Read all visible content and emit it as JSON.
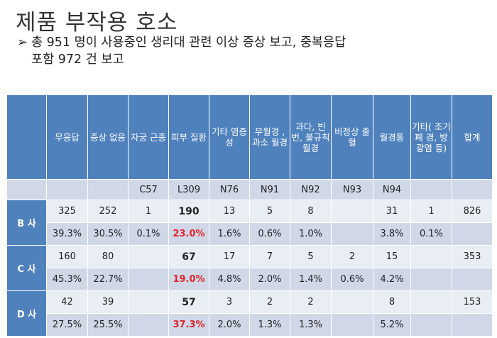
{
  "title": "제품 부작용 호소",
  "bullet": {
    "arrow": "➢",
    "line1": "총 951 명이 사용중인 생리대 관련 이상 증상 보고, 중복응답",
    "line2": "포함 972 건 보고"
  },
  "table": {
    "headers": [
      "무응답",
      "증상 없음",
      "자궁 근종",
      "피부 질환",
      "기타 염증성",
      "무월경 , 과소 월경",
      "과다, 빈번, 불규칙 월경",
      "비정상 출혈",
      "월경통",
      "기타( 조기폐 경, 방광염 등)",
      "합계"
    ],
    "codes": [
      "",
      "",
      "C57",
      "L309",
      "N76",
      "N91",
      "N92",
      "N93",
      "N94",
      "",
      ""
    ],
    "rows": [
      {
        "label": "B 사",
        "counts": [
          "325",
          "252",
          "1",
          "190",
          "13",
          "5",
          "8",
          "",
          "31",
          "1",
          "826"
        ],
        "percents": [
          "39.3%",
          "30.5%",
          "0.1%",
          "23.0%",
          "1.6%",
          "0.6%",
          "1.0%",
          "",
          "3.8%",
          "0.1%",
          ""
        ]
      },
      {
        "label": "C 사",
        "counts": [
          "160",
          "80",
          "",
          "67",
          "17",
          "7",
          "5",
          "2",
          "15",
          "",
          "353"
        ],
        "percents": [
          "45.3%",
          "22.7%",
          "",
          "19.0%",
          "4.8%",
          "2.0%",
          "1.4%",
          "0.6%",
          "4.2%",
          "",
          ""
        ]
      },
      {
        "label": "D 사",
        "counts": [
          "42",
          "39",
          "",
          "57",
          "3",
          "2",
          "2",
          "",
          "8",
          "",
          "153"
        ],
        "percents": [
          "27.5%",
          "25.5%",
          "",
          "37.3%",
          "2.0%",
          "1.3%",
          "1.3%",
          "",
          "5.2%",
          "",
          ""
        ]
      }
    ]
  },
  "colors": {
    "header_bg": "#4f81bd",
    "row_light": "#e9edf4",
    "row_dark": "#d0d8e8",
    "highlight_red": "#e0242b"
  }
}
